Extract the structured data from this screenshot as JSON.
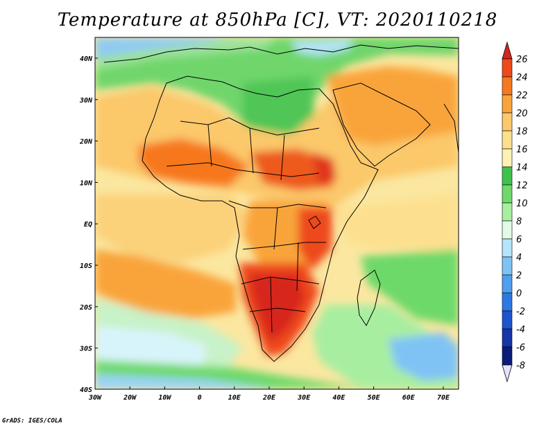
{
  "title": "Temperature at 850hPa [C], VT: 2020110218",
  "credit": "GrADS: IGES/COLA",
  "axes": {
    "lat_labels": [
      "40N",
      "30N",
      "20N",
      "10N",
      "EQ",
      "10S",
      "20S",
      "30S",
      "40S"
    ],
    "lon_labels": [
      "30W",
      "20W",
      "10W",
      "0",
      "10E",
      "20E",
      "30E",
      "40E",
      "50E",
      "60E",
      "70E"
    ]
  },
  "colorbar": {
    "labels": [
      "26",
      "24",
      "22",
      "20",
      "18",
      "16",
      "14",
      "12",
      "10",
      "8",
      "6",
      "4",
      "2",
      "0",
      "-2",
      "-4",
      "-6",
      "-8"
    ],
    "colors": [
      "#d7261f",
      "#ee4a1c",
      "#f7781e",
      "#f9a43a",
      "#fbc86a",
      "#fde08f",
      "#fdf2b3",
      "#3fc24c",
      "#6dd969",
      "#a8eea0",
      "#e3fbe6",
      "#b6e4fa",
      "#7fc3f5",
      "#4f9ff0",
      "#2e78e6",
      "#1e55cf",
      "#1536a8",
      "#0a1c7a"
    ]
  }
}
